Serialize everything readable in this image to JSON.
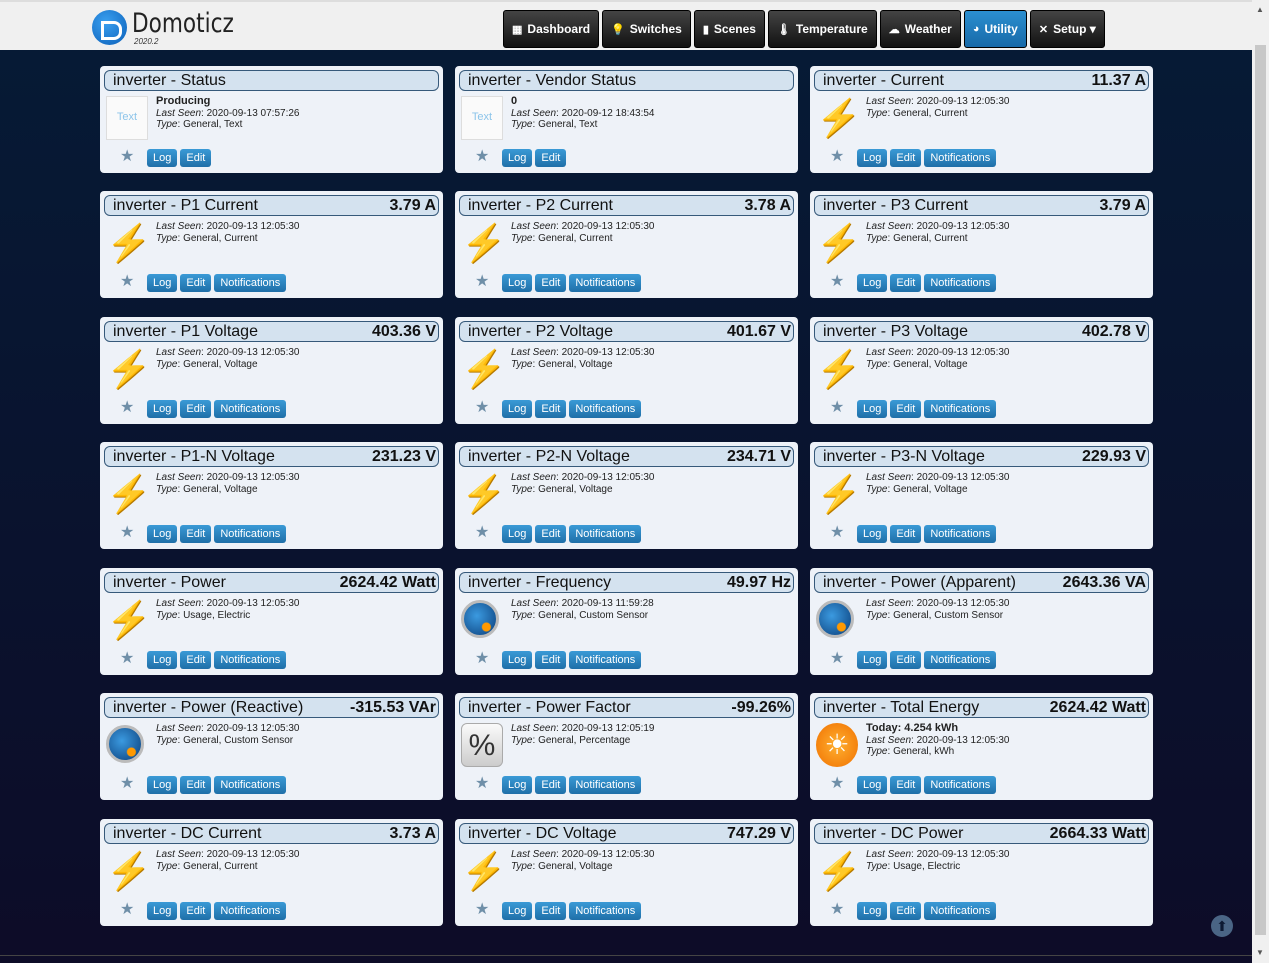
{
  "header": {
    "brand": "Domoticz",
    "version": "2020.2"
  },
  "nav": [
    {
      "label": "Dashboard",
      "icon": "dashboard-icon",
      "glyph": "▦"
    },
    {
      "label": "Switches",
      "icon": "lightbulb-icon",
      "glyph": "💡"
    },
    {
      "label": "Scenes",
      "icon": "scenes-icon",
      "glyph": "▮"
    },
    {
      "label": "Temperature",
      "icon": "thermometer-icon",
      "glyph": "🌡"
    },
    {
      "label": "Weather",
      "icon": "weather-icon",
      "glyph": "☁"
    },
    {
      "label": "Utility",
      "icon": "utility-icon",
      "glyph": "◕",
      "active": true
    },
    {
      "label": "Setup ▾",
      "icon": "tools-icon",
      "glyph": "✕"
    }
  ],
  "buttons": {
    "log": "Log",
    "edit": "Edit",
    "notifications": "Notifications",
    "last_seen": "Last Seen",
    "type": "Type"
  },
  "cards": [
    {
      "title": "inverter - Status",
      "value": "",
      "extra": "Producing",
      "last_seen": "2020-09-13 07:57:26",
      "type": "General, Text",
      "icon": "text",
      "notif": false
    },
    {
      "title": "inverter - Vendor Status",
      "value": "",
      "extra": "0",
      "last_seen": "2020-09-12 18:43:54",
      "type": "General, Text",
      "icon": "text",
      "notif": false
    },
    {
      "title": "inverter - Current",
      "value": "11.37 A",
      "last_seen": "2020-09-13 12:05:30",
      "type": "General, Current",
      "icon": "bolt",
      "notif": true
    },
    {
      "title": "inverter - P1 Current",
      "value": "3.79 A",
      "last_seen": "2020-09-13 12:05:30",
      "type": "General, Current",
      "icon": "bolt",
      "notif": true
    },
    {
      "title": "inverter - P2 Current",
      "value": "3.78 A",
      "last_seen": "2020-09-13 12:05:30",
      "type": "General, Current",
      "icon": "bolt",
      "notif": true
    },
    {
      "title": "inverter - P3 Current",
      "value": "3.79 A",
      "last_seen": "2020-09-13 12:05:30",
      "type": "General, Current",
      "icon": "bolt",
      "notif": true
    },
    {
      "title": "inverter - P1 Voltage",
      "value": "403.36 V",
      "last_seen": "2020-09-13 12:05:30",
      "type": "General, Voltage",
      "icon": "bolt",
      "notif": true
    },
    {
      "title": "inverter - P2 Voltage",
      "value": "401.67 V",
      "last_seen": "2020-09-13 12:05:30",
      "type": "General, Voltage",
      "icon": "bolt",
      "notif": true
    },
    {
      "title": "inverter - P3 Voltage",
      "value": "402.78 V",
      "last_seen": "2020-09-13 12:05:30",
      "type": "General, Voltage",
      "icon": "bolt",
      "notif": true
    },
    {
      "title": "inverter - P1-N Voltage",
      "value": "231.23 V",
      "last_seen": "2020-09-13 12:05:30",
      "type": "General, Voltage",
      "icon": "bolt",
      "notif": true
    },
    {
      "title": "inverter - P2-N Voltage",
      "value": "234.71 V",
      "last_seen": "2020-09-13 12:05:30",
      "type": "General, Voltage",
      "icon": "bolt",
      "notif": true
    },
    {
      "title": "inverter - P3-N Voltage",
      "value": "229.93 V",
      "last_seen": "2020-09-13 12:05:30",
      "type": "General, Voltage",
      "icon": "bolt",
      "notif": true
    },
    {
      "title": "inverter - Power",
      "value": "2624.42 Watt",
      "last_seen": "2020-09-13 12:05:30",
      "type": "Usage, Electric",
      "icon": "bolt",
      "notif": true
    },
    {
      "title": "inverter - Frequency",
      "value": "49.97 Hz",
      "last_seen": "2020-09-13 11:59:28",
      "type": "General, Custom Sensor",
      "icon": "globe",
      "notif": true
    },
    {
      "title": "inverter - Power (Apparent)",
      "value": "2643.36 VA",
      "last_seen": "2020-09-13 12:05:30",
      "type": "General, Custom Sensor",
      "icon": "globe",
      "notif": true
    },
    {
      "title": "inverter - Power (Reactive)",
      "value": "-315.53 VAr",
      "last_seen": "2020-09-13 12:05:30",
      "type": "General, Custom Sensor",
      "icon": "globe",
      "notif": true
    },
    {
      "title": "inverter - Power Factor",
      "value": "-99.26%",
      "last_seen": "2020-09-13 12:05:19",
      "type": "General, Percentage",
      "icon": "percent",
      "notif": true
    },
    {
      "title": "inverter - Total Energy",
      "value": "2624.42 Watt",
      "extra": "Today: 4.254 kWh",
      "last_seen": "2020-09-13 12:05:30",
      "type": "General, kWh",
      "icon": "sun",
      "notif": true
    },
    {
      "title": "inverter - DC Current",
      "value": "3.73 A",
      "last_seen": "2020-09-13 12:05:30",
      "type": "General, Current",
      "icon": "bolt",
      "notif": true
    },
    {
      "title": "inverter - DC Voltage",
      "value": "747.29 V",
      "last_seen": "2020-09-13 12:05:30",
      "type": "General, Voltage",
      "icon": "bolt",
      "notif": true
    },
    {
      "title": "inverter - DC Power",
      "value": "2664.33 Watt",
      "last_seen": "2020-09-13 12:05:30",
      "type": "Usage, Electric",
      "icon": "bolt",
      "notif": true
    }
  ]
}
